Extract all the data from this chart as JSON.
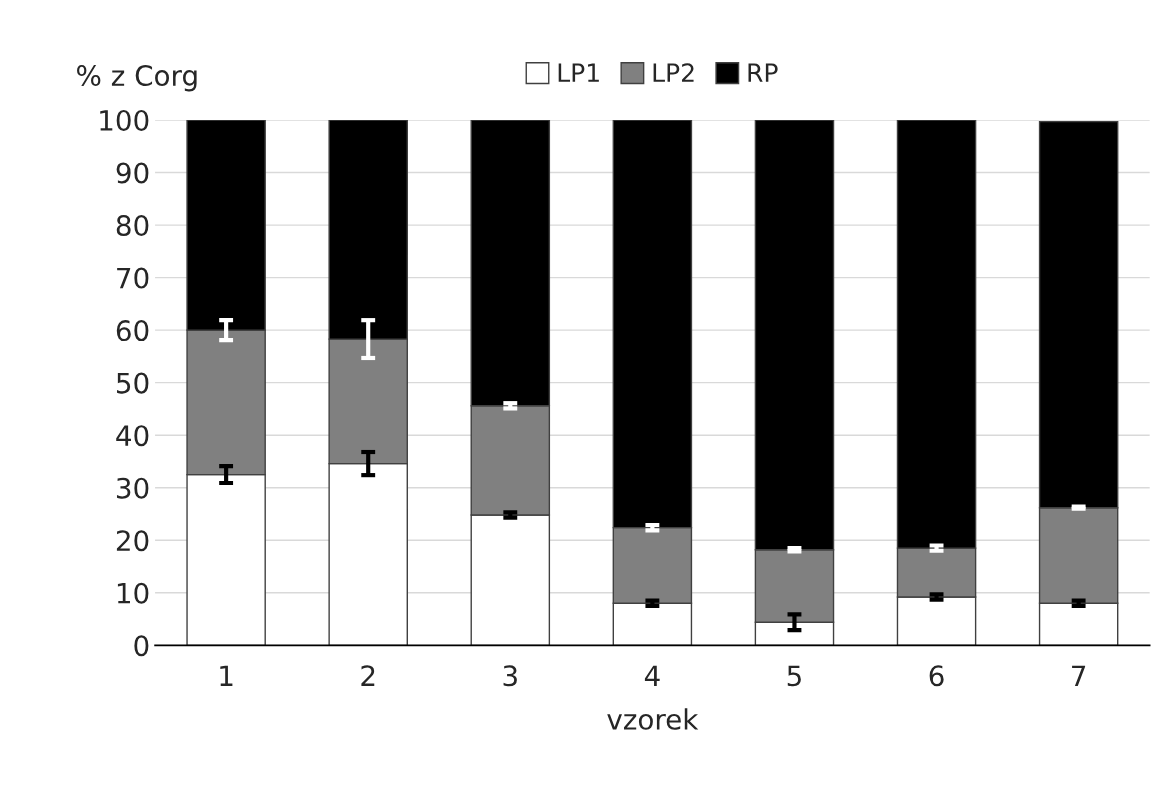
{
  "chart_data": {
    "type": "bar",
    "stacked": true,
    "xlabel": "vzorek",
    "ylabel": "% z Corg",
    "categories": [
      "1",
      "2",
      "3",
      "4",
      "5",
      "6",
      "7"
    ],
    "series": [
      {
        "name": "LP1",
        "color": "#ffffff",
        "values": [
          32.5,
          34.6,
          24.8,
          8.0,
          4.4,
          9.2,
          8.0
        ],
        "errors": [
          1.6,
          2.2,
          0.5,
          0.5,
          1.5,
          0.5,
          0.5
        ]
      },
      {
        "name": "LP2",
        "color": "#808080",
        "values": [
          27.5,
          23.7,
          20.8,
          14.4,
          13.8,
          9.3,
          18.2
        ],
        "errors": [
          1.9,
          3.6,
          0.5,
          0.5,
          0.3,
          0.5,
          0.2
        ]
      },
      {
        "name": "RP",
        "color": "#000000",
        "values": [
          40.0,
          41.7,
          54.4,
          77.6,
          81.8,
          81.5,
          73.5
        ]
      }
    ],
    "ylim": [
      0,
      100
    ],
    "yticks": [
      0,
      10,
      20,
      30,
      40,
      50,
      60,
      70,
      80,
      90,
      100
    ],
    "grid": "y",
    "legend": "top"
  }
}
